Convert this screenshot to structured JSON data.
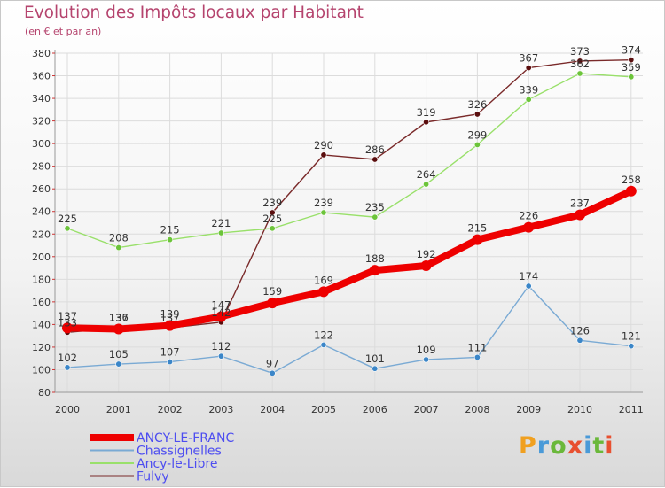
{
  "title": "Evolution des Impôts locaux par Habitant",
  "subtitle": "(en € et par an)",
  "logo_text": "Proxiti",
  "chart_data": {
    "type": "line",
    "x": [
      "2000",
      "2001",
      "2002",
      "2003",
      "2004",
      "2005",
      "2006",
      "2007",
      "2008",
      "2009",
      "2010",
      "2011"
    ],
    "ylim": [
      80,
      380
    ],
    "yticks": [
      80,
      100,
      120,
      140,
      160,
      180,
      200,
      220,
      240,
      260,
      280,
      300,
      320,
      340,
      360,
      380
    ],
    "grid": true,
    "legend_position": "bottom-left",
    "series": [
      {
        "name": "Fulvy",
        "color": "#7a2a2a",
        "point_color": "#5a0d0d",
        "values": [
          133,
          137,
          137,
          142,
          239,
          290,
          286,
          319,
          326,
          367,
          373,
          374
        ]
      },
      {
        "name": "Ancy-le-Libre",
        "color": "#99e06a",
        "point_color": "#6cc43a",
        "values": [
          225,
          208,
          215,
          221,
          225,
          239,
          235,
          264,
          299,
          339,
          362,
          359
        ]
      },
      {
        "name": "Chassignelles",
        "color": "#7aaad4",
        "point_color": "#3b86c8",
        "values": [
          102,
          105,
          107,
          112,
          97,
          122,
          101,
          109,
          111,
          174,
          126,
          121
        ]
      },
      {
        "name": "ANCY-LE-FRANC",
        "color": "#ee0000",
        "point_color": "#ee0000",
        "bold": true,
        "values": [
          137,
          136,
          139,
          147,
          159,
          169,
          188,
          192,
          215,
          226,
          237,
          258
        ]
      }
    ],
    "legend_order": [
      "ANCY-LE-FRANC",
      "Chassignelles",
      "Ancy-le-Libre",
      "Fulvy"
    ]
  }
}
